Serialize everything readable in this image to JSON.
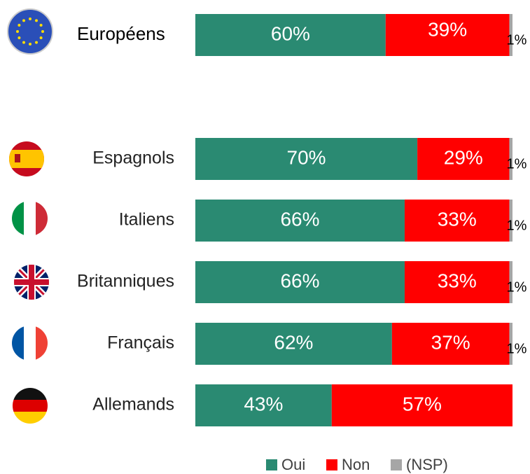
{
  "chart_data": {
    "type": "stacked-bar-horizontal",
    "categories": [
      "Européens",
      "Espagnols",
      "Italiens",
      "Britanniques",
      "Français",
      "Allemands"
    ],
    "xlim": [
      0,
      100
    ],
    "legend": "bottom",
    "series": [
      {
        "name": "Oui",
        "color": "#2a8a72",
        "values": [
          60,
          70,
          66,
          66,
          62,
          43
        ],
        "value_labels": [
          "60%",
          "70%",
          "66%",
          "66%",
          "62%",
          "43%"
        ]
      },
      {
        "name": "Non",
        "color": "#ff0000",
        "values": [
          39,
          29,
          33,
          33,
          37,
          57
        ],
        "value_labels": [
          "39%",
          "29%",
          "33%",
          "33%",
          "37%",
          "57%"
        ]
      },
      {
        "name": "(NSP)",
        "color": "#a6a6a6",
        "values": [
          1,
          1,
          1,
          1,
          1,
          null
        ],
        "value_labels": [
          "1%",
          "1%",
          "1%",
          "1%",
          "1%",
          null
        ]
      }
    ]
  }
}
